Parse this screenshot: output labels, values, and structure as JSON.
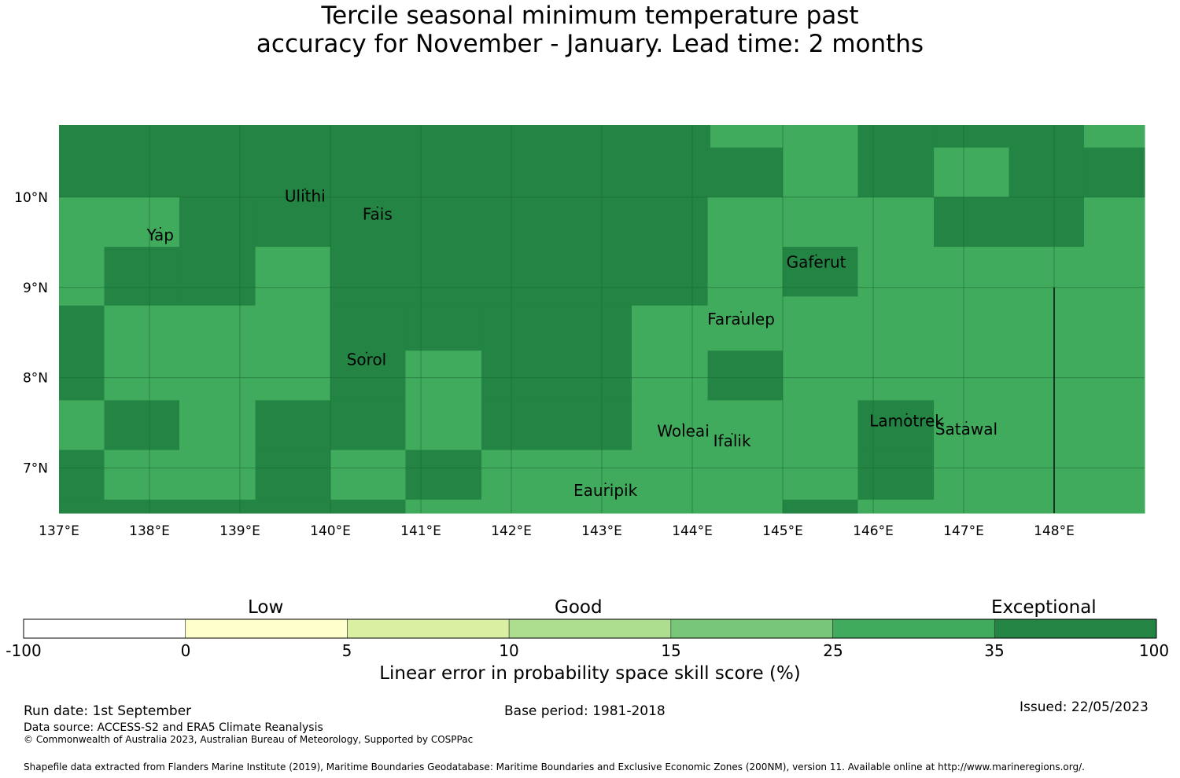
{
  "title": {
    "line1": "Tercile seasonal minimum temperature past",
    "line2": "accuracy for November - January. Lead time: 2 months"
  },
  "map": {
    "lon_range": [
      137.0,
      149.0
    ],
    "lat_range": [
      6.5,
      10.8
    ],
    "x_ticks": [
      {
        "value": 137,
        "label": "137°E"
      },
      {
        "value": 138,
        "label": "138°E"
      },
      {
        "value": 139,
        "label": "139°E"
      },
      {
        "value": 140,
        "label": "140°E"
      },
      {
        "value": 141,
        "label": "141°E"
      },
      {
        "value": 142,
        "label": "142°E"
      },
      {
        "value": 143,
        "label": "143°E"
      },
      {
        "value": 144,
        "label": "144°E"
      },
      {
        "value": 145,
        "label": "145°E"
      },
      {
        "value": 146,
        "label": "146°E"
      },
      {
        "value": 147,
        "label": "147°E"
      },
      {
        "value": 148,
        "label": "148°E"
      }
    ],
    "y_ticks": [
      {
        "value": 10,
        "label": "10°N"
      },
      {
        "value": 9,
        "label": "9°N"
      },
      {
        "value": 8,
        "label": "8°N"
      },
      {
        "value": 7,
        "label": "7°N"
      }
    ],
    "colors": {
      "exceptional": "#238443",
      "good_high": "#41ab5d",
      "line": "#111111"
    },
    "cells": [
      {
        "lon": [
          137.0,
          144.2
        ],
        "lat": [
          10.0,
          10.8
        ],
        "c": "exceptional"
      },
      {
        "lon": [
          144.2,
          145.0
        ],
        "lat": [
          10.55,
          10.8
        ],
        "c": "good_high"
      },
      {
        "lon": [
          144.2,
          145.0
        ],
        "lat": [
          10.0,
          10.55
        ],
        "c": "exceptional"
      },
      {
        "lon": [
          145.0,
          145.83
        ],
        "lat": [
          10.0,
          10.8
        ],
        "c": "good_high"
      },
      {
        "lon": [
          145.83,
          146.67
        ],
        "lat": [
          10.0,
          10.8
        ],
        "c": "exceptional"
      },
      {
        "lon": [
          146.67,
          147.5
        ],
        "lat": [
          10.55,
          10.8
        ],
        "c": "exceptional"
      },
      {
        "lon": [
          146.67,
          147.5
        ],
        "lat": [
          10.0,
          10.55
        ],
        "c": "good_high"
      },
      {
        "lon": [
          147.5,
          148.33
        ],
        "lat": [
          10.0,
          10.8
        ],
        "c": "exceptional"
      },
      {
        "lon": [
          148.33,
          149.0
        ],
        "lat": [
          10.55,
          10.8
        ],
        "c": "good_high"
      },
      {
        "lon": [
          148.33,
          149.0
        ],
        "lat": [
          10.0,
          10.55
        ],
        "c": "exceptional"
      },
      {
        "lon": [
          137.0,
          137.5
        ],
        "lat": [
          8.8,
          10.0
        ],
        "c": "good_high"
      },
      {
        "lon": [
          137.5,
          138.33
        ],
        "lat": [
          9.45,
          10.0
        ],
        "c": "good_high"
      },
      {
        "lon": [
          137.5,
          138.33
        ],
        "lat": [
          8.8,
          9.45
        ],
        "c": "exceptional"
      },
      {
        "lon": [
          138.33,
          139.17
        ],
        "lat": [
          8.8,
          10.0
        ],
        "c": "exceptional"
      },
      {
        "lon": [
          139.17,
          140.0
        ],
        "lat": [
          9.45,
          10.0
        ],
        "c": "exceptional"
      },
      {
        "lon": [
          139.17,
          140.0
        ],
        "lat": [
          8.8,
          9.45
        ],
        "c": "good_high"
      },
      {
        "lon": [
          140.0,
          144.17
        ],
        "lat": [
          8.8,
          10.0
        ],
        "c": "exceptional"
      },
      {
        "lon": [
          144.17,
          145.0
        ],
        "lat": [
          8.8,
          10.0
        ],
        "c": "good_high"
      },
      {
        "lon": [
          145.0,
          145.83
        ],
        "lat": [
          9.45,
          10.0
        ],
        "c": "good_high"
      },
      {
        "lon": [
          145.0,
          145.83
        ],
        "lat": [
          8.9,
          9.45
        ],
        "c": "exceptional"
      },
      {
        "lon": [
          145.0,
          145.83
        ],
        "lat": [
          8.8,
          8.9
        ],
        "c": "good_high"
      },
      {
        "lon": [
          145.83,
          146.67
        ],
        "lat": [
          8.8,
          10.0
        ],
        "c": "good_high"
      },
      {
        "lon": [
          146.67,
          148.33
        ],
        "lat": [
          9.45,
          10.0
        ],
        "c": "exceptional"
      },
      {
        "lon": [
          146.67,
          148.33
        ],
        "lat": [
          8.8,
          9.45
        ],
        "c": "good_high"
      },
      {
        "lon": [
          148.33,
          149.0
        ],
        "lat": [
          8.8,
          10.0
        ],
        "c": "good_high"
      },
      {
        "lon": [
          137.0,
          137.5
        ],
        "lat": [
          7.75,
          8.8
        ],
        "c": "exceptional"
      },
      {
        "lon": [
          137.5,
          140.0
        ],
        "lat": [
          7.75,
          8.8
        ],
        "c": "good_high"
      },
      {
        "lon": [
          140.0,
          140.83
        ],
        "lat": [
          7.75,
          8.8
        ],
        "c": "exceptional"
      },
      {
        "lon": [
          140.83,
          141.67
        ],
        "lat": [
          8.3,
          8.8
        ],
        "c": "exceptional"
      },
      {
        "lon": [
          140.83,
          141.67
        ],
        "lat": [
          7.75,
          8.3
        ],
        "c": "good_high"
      },
      {
        "lon": [
          141.67,
          143.33
        ],
        "lat": [
          7.75,
          8.8
        ],
        "c": "exceptional"
      },
      {
        "lon": [
          143.33,
          144.17
        ],
        "lat": [
          7.75,
          8.8
        ],
        "c": "good_high"
      },
      {
        "lon": [
          144.17,
          145.0
        ],
        "lat": [
          8.3,
          8.8
        ],
        "c": "good_high"
      },
      {
        "lon": [
          144.17,
          145.0
        ],
        "lat": [
          7.75,
          8.3
        ],
        "c": "exceptional"
      },
      {
        "lon": [
          145.0,
          149.0
        ],
        "lat": [
          7.75,
          8.8
        ],
        "c": "good_high"
      },
      {
        "lon": [
          137.0,
          137.5
        ],
        "lat": [
          7.2,
          7.75
        ],
        "c": "good_high"
      },
      {
        "lon": [
          137.5,
          138.33
        ],
        "lat": [
          7.2,
          7.75
        ],
        "c": "exceptional"
      },
      {
        "lon": [
          138.33,
          139.17
        ],
        "lat": [
          7.2,
          7.75
        ],
        "c": "good_high"
      },
      {
        "lon": [
          139.17,
          140.83
        ],
        "lat": [
          7.2,
          7.75
        ],
        "c": "exceptional"
      },
      {
        "lon": [
          140.83,
          141.67
        ],
        "lat": [
          7.2,
          7.75
        ],
        "c": "good_high"
      },
      {
        "lon": [
          141.67,
          143.33
        ],
        "lat": [
          7.2,
          7.75
        ],
        "c": "exceptional"
      },
      {
        "lon": [
          143.33,
          145.83
        ],
        "lat": [
          7.2,
          7.75
        ],
        "c": "good_high"
      },
      {
        "lon": [
          145.83,
          146.67
        ],
        "lat": [
          7.2,
          7.75
        ],
        "c": "exceptional"
      },
      {
        "lon": [
          146.67,
          149.0
        ],
        "lat": [
          7.2,
          7.75
        ],
        "c": "good_high"
      },
      {
        "lon": [
          137.0,
          137.5
        ],
        "lat": [
          6.65,
          7.2
        ],
        "c": "exceptional"
      },
      {
        "lon": [
          137.5,
          139.17
        ],
        "lat": [
          6.65,
          7.2
        ],
        "c": "good_high"
      },
      {
        "lon": [
          139.17,
          140.0
        ],
        "lat": [
          6.65,
          7.2
        ],
        "c": "exceptional"
      },
      {
        "lon": [
          140.0,
          140.83
        ],
        "lat": [
          6.65,
          7.2
        ],
        "c": "good_high"
      },
      {
        "lon": [
          140.83,
          141.67
        ],
        "lat": [
          6.65,
          7.2
        ],
        "c": "exceptional"
      },
      {
        "lon": [
          141.67,
          145.83
        ],
        "lat": [
          6.65,
          7.2
        ],
        "c": "good_high"
      },
      {
        "lon": [
          145.83,
          146.67
        ],
        "lat": [
          6.65,
          7.2
        ],
        "c": "exceptional"
      },
      {
        "lon": [
          146.67,
          149.0
        ],
        "lat": [
          6.65,
          7.2
        ],
        "c": "good_high"
      },
      {
        "lon": [
          137.0,
          140.83
        ],
        "lat": [
          6.5,
          6.65
        ],
        "c": "exceptional"
      },
      {
        "lon": [
          140.83,
          145.0
        ],
        "lat": [
          6.5,
          6.65
        ],
        "c": "good_high"
      },
      {
        "lon": [
          145.0,
          145.83
        ],
        "lat": [
          6.5,
          6.65
        ],
        "c": "exceptional"
      },
      {
        "lon": [
          145.83,
          149.0
        ],
        "lat": [
          6.5,
          6.65
        ],
        "c": "good_high"
      }
    ],
    "boundary_line": {
      "lon": 148.0,
      "lat": [
        6.5,
        9.0
      ]
    },
    "places": [
      {
        "name": "Ulithi",
        "lon": 139.72,
        "lat": 9.95
      },
      {
        "name": "Fais",
        "lon": 140.52,
        "lat": 9.75
      },
      {
        "name": "Yap",
        "lon": 138.12,
        "lat": 9.52
      },
      {
        "name": "Gaferut",
        "lon": 145.37,
        "lat": 9.22
      },
      {
        "name": "Faraulep",
        "lon": 144.54,
        "lat": 8.59
      },
      {
        "name": "Sorol",
        "lon": 140.4,
        "lat": 8.14
      },
      {
        "name": "Woleai",
        "lon": 143.9,
        "lat": 7.35
      },
      {
        "name": "Ifalik",
        "lon": 144.44,
        "lat": 7.24
      },
      {
        "name": "Lamotrek",
        "lon": 146.37,
        "lat": 7.46
      },
      {
        "name": "Satawal",
        "lon": 147.03,
        "lat": 7.37
      },
      {
        "name": "Eauripik",
        "lon": 143.04,
        "lat": 6.69
      }
    ]
  },
  "colorbar": {
    "category_labels": {
      "low": "Low",
      "good": "Good",
      "exceptional": "Exceptional"
    },
    "ticks": [
      "-100",
      "0",
      "5",
      "10",
      "15",
      "25",
      "35",
      "100"
    ],
    "colors": [
      "#ffffff",
      "#ffffcc",
      "#d9f0a3",
      "#addd8e",
      "#78c679",
      "#41ab5d",
      "#238443"
    ],
    "title": "Linear error in probability space skill score (%)"
  },
  "footer": {
    "run_date": "Run date: 1st September",
    "base_period": "Base period: 1981-2018",
    "issued": "Issued: 22/05/2023",
    "data_source": "Data source: ACCESS-S2 and ERA5 Climate Reanalysis",
    "copyright": "© Commonwealth of Australia 2023, Australian Bureau of Meteorology, Supported by COSPPac",
    "shapefile": "Shapefile data extracted from Flanders Marine Institute (2019), Maritime Boundaries Geodatabase: Maritime Boundaries and Exclusive Economic Zones (200NM), version 11. Available online at http://www.marineregions.org/."
  }
}
